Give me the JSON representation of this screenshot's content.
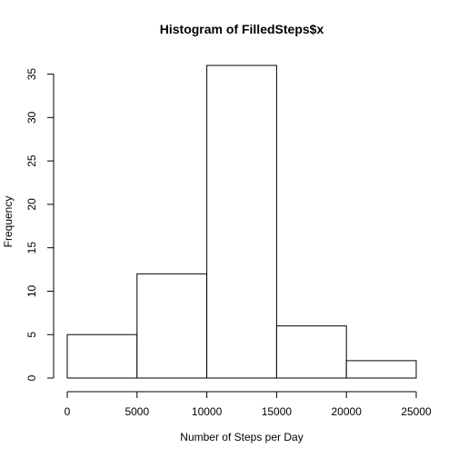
{
  "chart_data": {
    "type": "bar",
    "subtype": "histogram",
    "title": "Histogram of FilledSteps$x",
    "xlabel": "Number of Steps per Day",
    "ylabel": "Frequency",
    "bins": [
      {
        "from": 0,
        "to": 5000,
        "count": 5
      },
      {
        "from": 5000,
        "to": 10000,
        "count": 12
      },
      {
        "from": 10000,
        "to": 15000,
        "count": 36
      },
      {
        "from": 15000,
        "to": 20000,
        "count": 6
      },
      {
        "from": 20000,
        "to": 25000,
        "count": 2
      }
    ],
    "xlim": [
      0,
      25000
    ],
    "ylim": [
      0,
      36
    ],
    "xticks": [
      0,
      5000,
      10000,
      15000,
      20000,
      25000
    ],
    "yticks": [
      0,
      5,
      10,
      15,
      20,
      25,
      30,
      35
    ],
    "grid": false,
    "legend": "none",
    "bar_fill": "#ffffff",
    "bar_stroke": "#000000"
  }
}
